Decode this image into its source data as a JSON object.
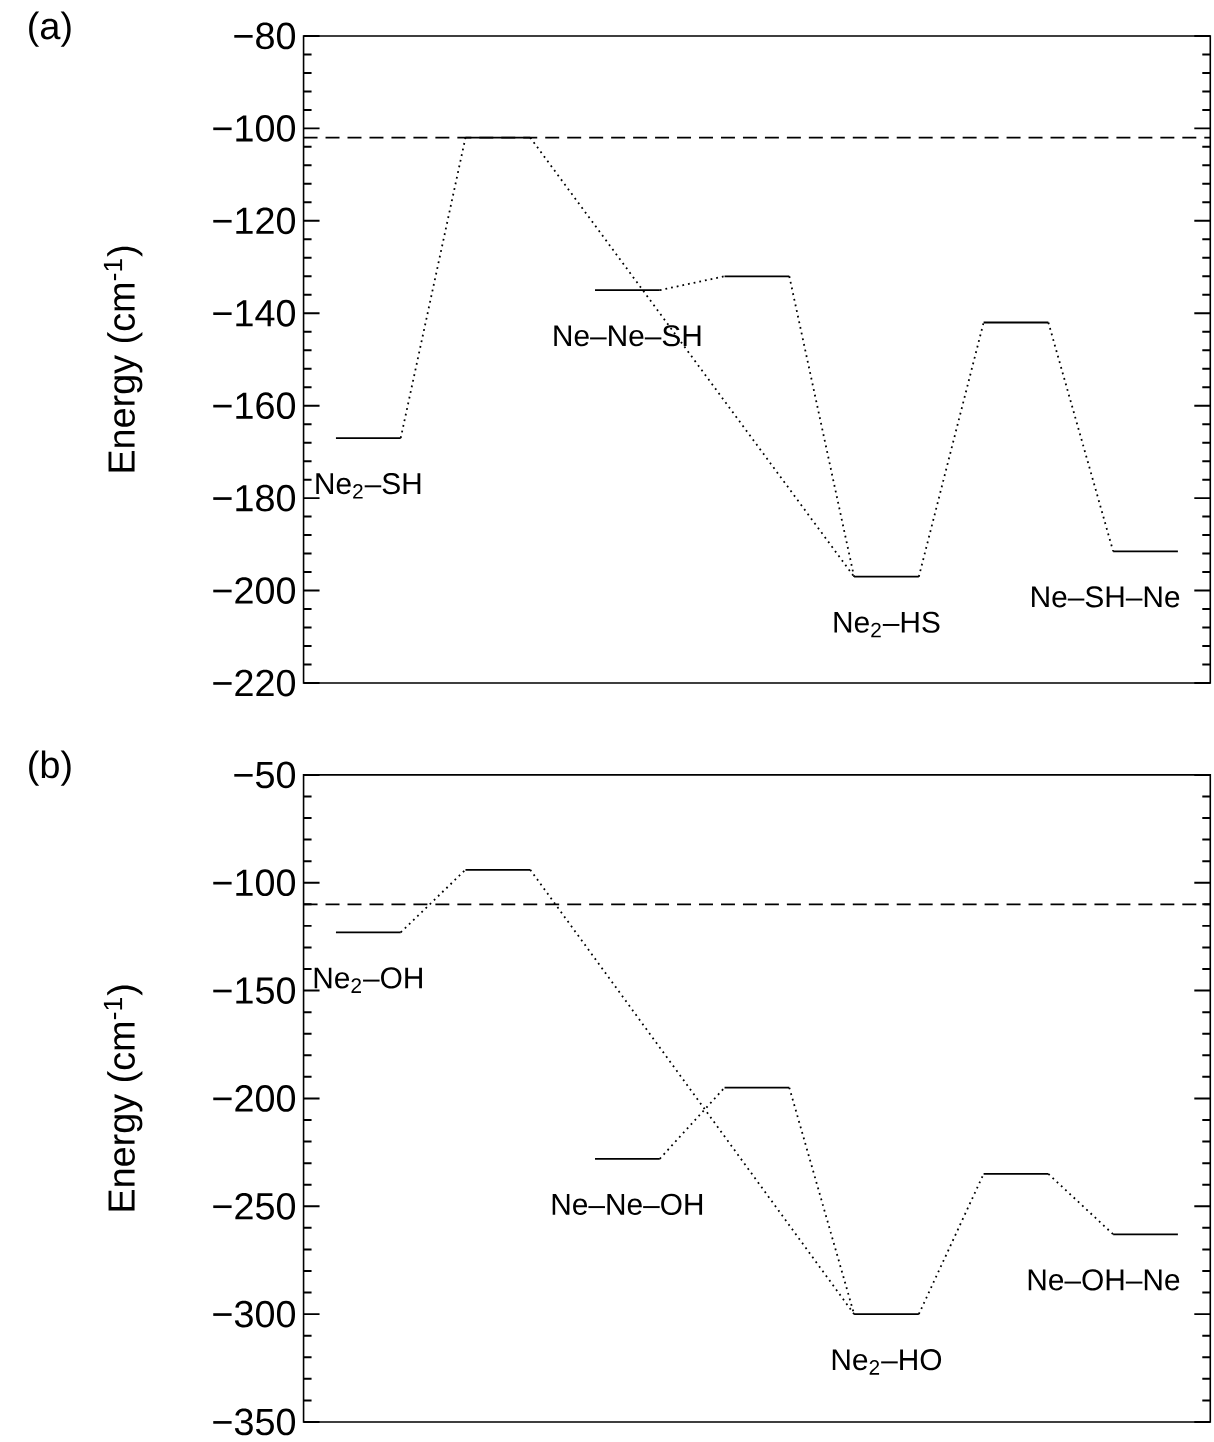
{
  "chart_data": [
    {
      "type": "line",
      "title": "(a)",
      "ylabel": "Energy (cm$^{-1}$)",
      "categories": [
        null,
        null,
        null,
        null,
        null,
        null,
        null,
        null,
        null,
        null,
        null,
        null,
        null,
        null
      ],
      "ylim": [
        -220,
        -80
      ],
      "yticks": [
        {
          "value": -220,
          "label": "−220"
        },
        {
          "value": -200,
          "label": "−200"
        },
        {
          "value": -180,
          "label": "−180"
        },
        {
          "value": -160,
          "label": "−160"
        },
        {
          "value": -140,
          "label": "−140"
        },
        {
          "value": -120,
          "label": "−120"
        },
        {
          "value": -100,
          "label": "−100"
        },
        {
          "value": -80,
          "label": "−80"
        }
      ],
      "tick_labels": "y",
      "series": [
        {
          "color": "#000000",
          "line_style": "solid",
          "values": [
            -167,
            -167,
            null,
            null,
            -135,
            -135,
            null,
            null,
            -197,
            -197,
            null,
            null,
            -191.5,
            -191.5
          ]
        },
        {
          "color": "#000000",
          "line_style": "solid",
          "values": [
            null,
            null,
            -102,
            -102,
            null,
            null,
            -132,
            -132,
            null,
            null,
            -142,
            -142,
            null,
            null
          ]
        },
        {
          "color": "#000000",
          "line_style": "dotted",
          "values": [
            null,
            -167,
            -102,
            null,
            null,
            null,
            null,
            null,
            null,
            null,
            null,
            null,
            null,
            null
          ]
        },
        {
          "color": "#000000",
          "line_style": "dotted",
          "values": [
            null,
            null,
            null,
            -102,
            null,
            null,
            null,
            null,
            -197,
            null,
            null,
            null,
            null,
            null
          ]
        },
        {
          "color": "#000000",
          "line_style": "dotted",
          "values": [
            null,
            null,
            null,
            null,
            null,
            -135,
            -132,
            null,
            null,
            null,
            null,
            null,
            null,
            null
          ]
        },
        {
          "color": "#000000",
          "line_style": "dotted",
          "values": [
            null,
            null,
            null,
            null,
            null,
            null,
            null,
            -132,
            -197,
            null,
            null,
            null,
            null,
            null
          ]
        },
        {
          "color": "#000000",
          "line_style": "dotted",
          "values": [
            null,
            null,
            null,
            null,
            null,
            null,
            null,
            null,
            null,
            -197,
            -142,
            null,
            null,
            null
          ]
        },
        {
          "color": "#000000",
          "line_style": "dotted",
          "values": [
            null,
            null,
            null,
            null,
            null,
            null,
            null,
            null,
            null,
            null,
            null,
            -142,
            -191.5,
            null
          ]
        }
      ],
      "ref_lines": [
        {
          "axis": "y",
          "value": -102,
          "line_style": "dashed",
          "color": "#000000"
        }
      ],
      "annotations": [
        "Ne$_{2}$–SH",
        "Ne–Ne–SH",
        "Ne$_{2}$–HS",
        "Ne–SH–Ne"
      ]
    },
    {
      "type": "line",
      "title": "(b)",
      "ylabel": "Energy (cm$^{-1}$)",
      "categories": [
        null,
        null,
        null,
        null,
        null,
        null,
        null,
        null,
        null,
        null,
        null,
        null,
        null,
        null
      ],
      "ylim": [
        -350,
        -50
      ],
      "yticks": [
        {
          "value": -350,
          "label": "−350"
        },
        {
          "value": -300,
          "label": "−300"
        },
        {
          "value": -250,
          "label": "−250"
        },
        {
          "value": -200,
          "label": "−200"
        },
        {
          "value": -150,
          "label": "−150"
        },
        {
          "value": -100,
          "label": "−100"
        },
        {
          "value": -50,
          "label": "−50"
        }
      ],
      "tick_labels": "y",
      "series": [
        {
          "color": "#000000",
          "line_style": "solid",
          "values": [
            -123,
            -123,
            null,
            null,
            -228,
            -228,
            null,
            null,
            -300,
            -300,
            null,
            null,
            -263,
            -263
          ]
        },
        {
          "color": "#000000",
          "line_style": "solid",
          "values": [
            null,
            null,
            -94,
            -94,
            null,
            null,
            -195,
            -195,
            null,
            null,
            -235,
            -235,
            null,
            null
          ]
        },
        {
          "color": "#000000",
          "line_style": "dotted",
          "values": [
            null,
            -123,
            -94,
            null,
            null,
            null,
            null,
            null,
            null,
            null,
            null,
            null,
            null,
            null
          ]
        },
        {
          "color": "#000000",
          "line_style": "dotted",
          "values": [
            null,
            null,
            null,
            -94,
            null,
            null,
            null,
            null,
            -300,
            null,
            null,
            null,
            null,
            null
          ]
        },
        {
          "color": "#000000",
          "line_style": "dotted",
          "values": [
            null,
            null,
            null,
            null,
            null,
            -228,
            -195,
            null,
            null,
            null,
            null,
            null,
            null,
            null
          ]
        },
        {
          "color": "#000000",
          "line_style": "dotted",
          "values": [
            null,
            null,
            null,
            null,
            null,
            null,
            null,
            -195,
            -300,
            null,
            null,
            null,
            null,
            null
          ]
        },
        {
          "color": "#000000",
          "line_style": "dotted",
          "values": [
            null,
            null,
            null,
            null,
            null,
            null,
            null,
            null,
            null,
            -300,
            -235,
            null,
            null,
            null
          ]
        },
        {
          "color": "#000000",
          "line_style": "dotted",
          "values": [
            null,
            null,
            null,
            null,
            null,
            null,
            null,
            null,
            null,
            null,
            null,
            -235,
            -263,
            null
          ]
        }
      ],
      "ref_lines": [
        {
          "axis": "y",
          "value": -110,
          "line_style": "dashed",
          "color": "#000000"
        }
      ],
      "annotations": [
        "Ne$_{2}$–OH",
        "Ne–Ne–OH",
        "Ne$_{2}$–HO",
        "Ne–OH–Ne"
      ]
    }
  ]
}
